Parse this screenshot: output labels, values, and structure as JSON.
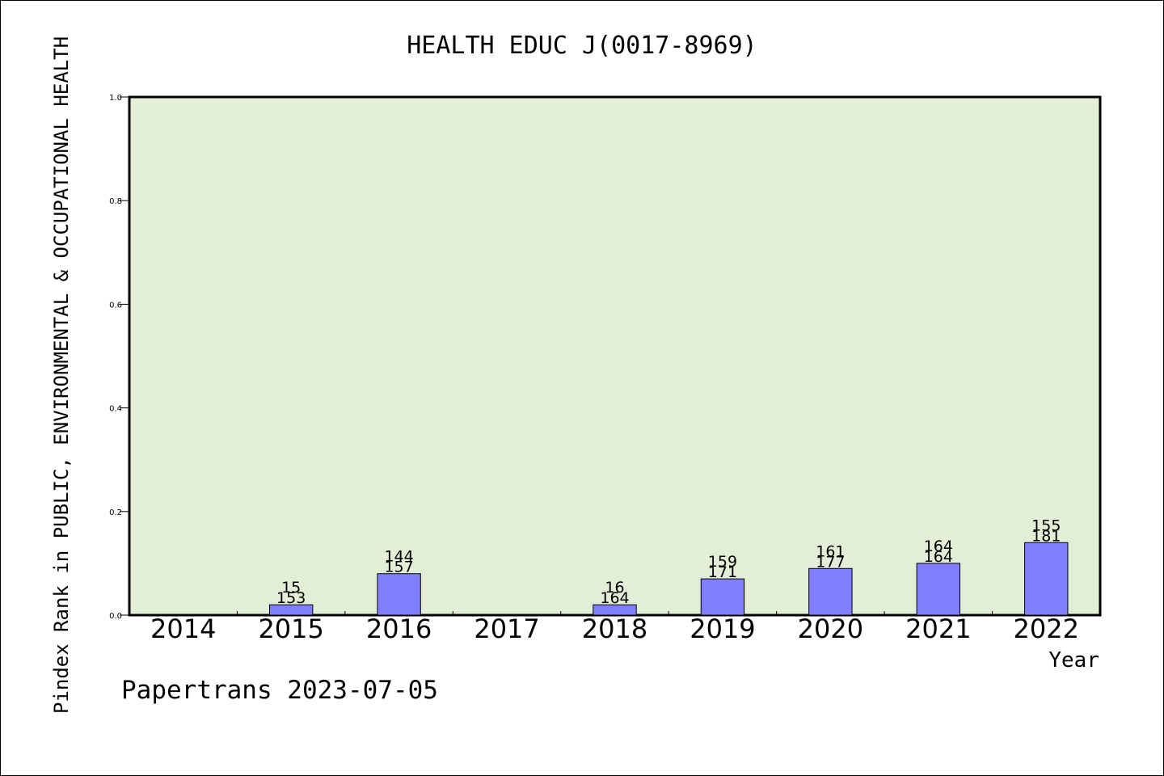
{
  "chart_data": {
    "type": "bar",
    "title": "HEALTH EDUC J(0017-8969)",
    "xlabel": "Year",
    "ylabel": "Pindex Rank in PUBLIC, ENVIRONMENTAL & OCCUPATIONAL HEALTH",
    "footer": "Papertrans 2023-07-05",
    "categories": [
      "2014",
      "2015",
      "2016",
      "2017",
      "2018",
      "2019",
      "2020",
      "2021",
      "2022"
    ],
    "values": [
      null,
      0.02,
      0.08,
      null,
      0.02,
      0.07,
      0.09,
      0.1,
      0.14
    ],
    "labels_top": [
      null,
      "15",
      "144",
      null,
      "16",
      "159",
      "161",
      "164",
      "155"
    ],
    "labels_bottom": [
      null,
      "153",
      "157",
      null,
      "164",
      "171",
      "177",
      "164",
      "181"
    ],
    "ylim": [
      0,
      1.0
    ],
    "yticks": [
      "0.0",
      "0.2",
      "0.4",
      "0.6",
      "0.8",
      "1.0"
    ],
    "grid": false,
    "colors": {
      "plot_background": "#e2efd6",
      "bar_fill": "#8080ff",
      "bar_stroke": "#000000",
      "axis": "#000000"
    }
  }
}
